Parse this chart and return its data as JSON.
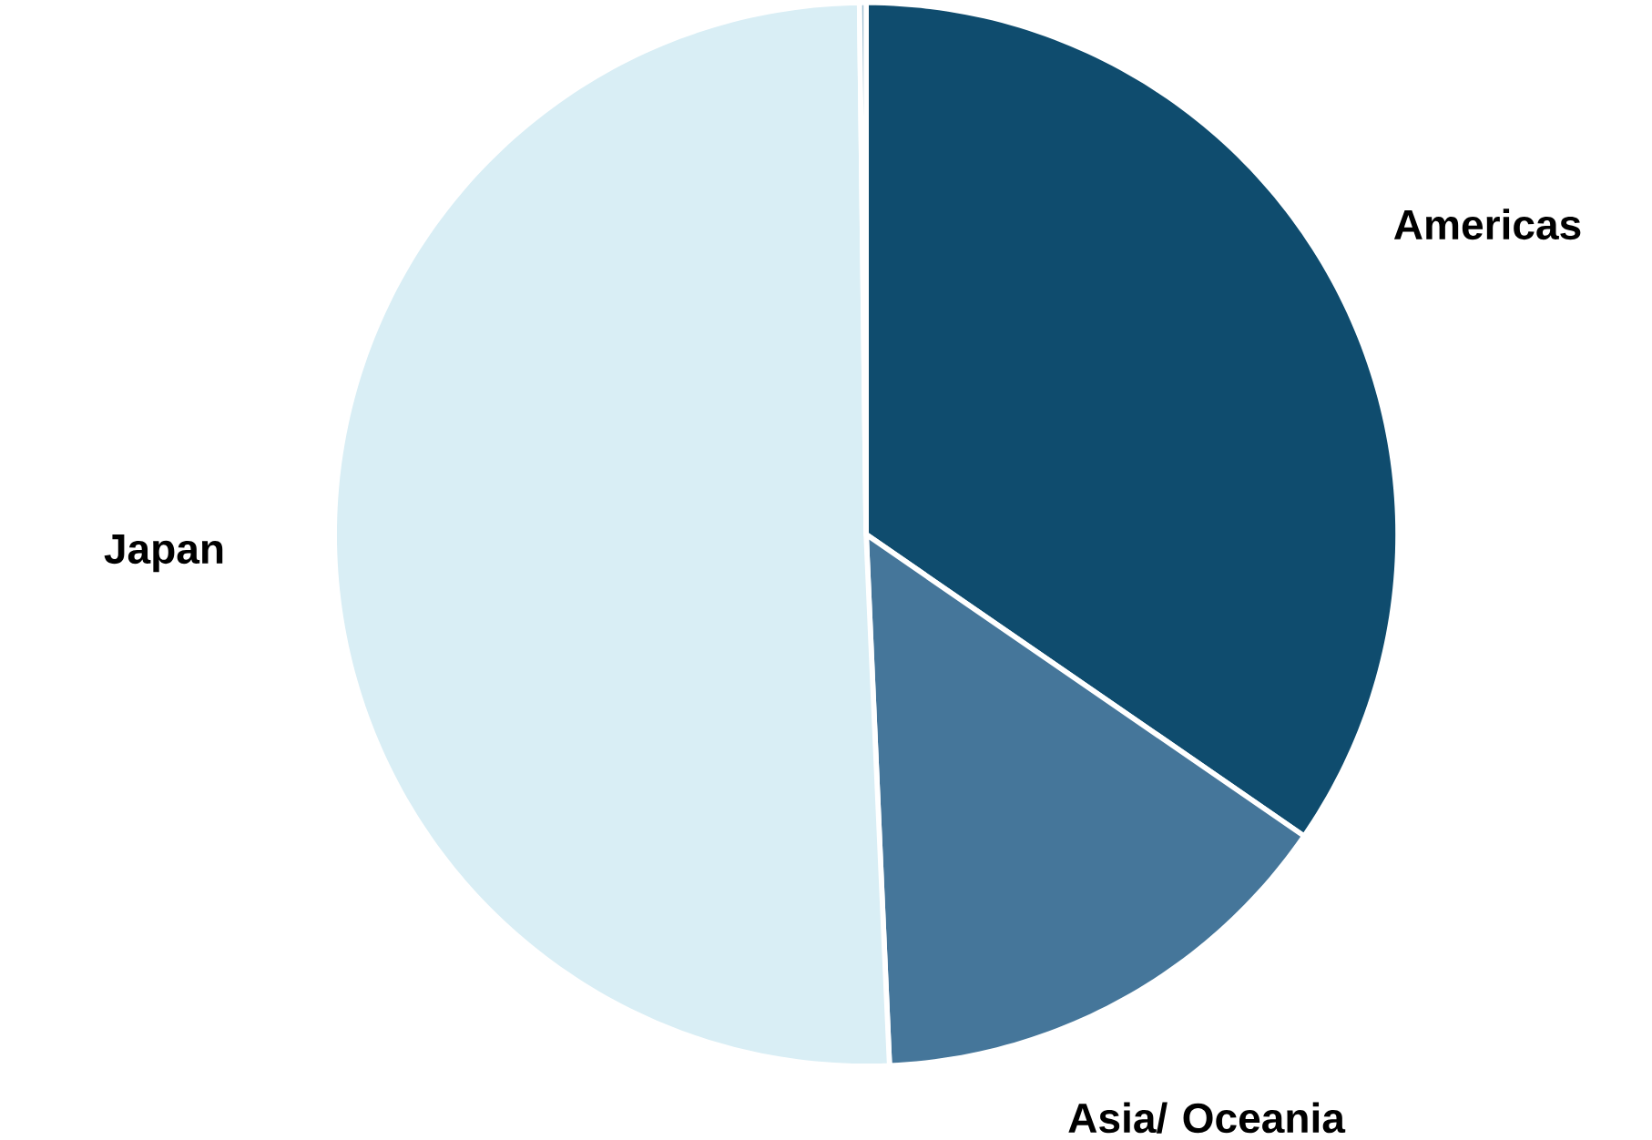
{
  "chart_data": {
    "type": "pie",
    "categories": [
      "Americas",
      "Asia/ Oceania",
      "Japan",
      null
    ],
    "values": [
      34.6,
      14.7,
      50.5,
      0.2
    ],
    "colors": [
      "#0f4c6e",
      "#45769a",
      "#d9eef5",
      "#9fbfd2"
    ]
  }
}
